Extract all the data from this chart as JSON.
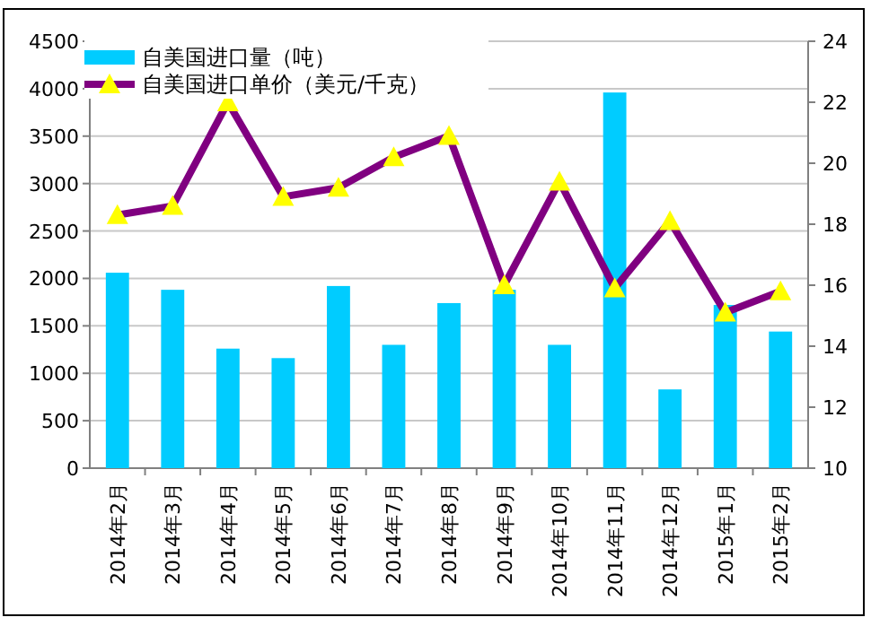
{
  "chart_data": {
    "type": "bar",
    "categories": [
      "2014年2月",
      "2014年3月",
      "2014年4月",
      "2014年5月",
      "2014年6月",
      "2014年7月",
      "2014年8月",
      "2014年9月",
      "2014年10月",
      "2014年11月",
      "2014年12月",
      "2015年1月",
      "2015年2月"
    ],
    "series": [
      {
        "name": "自美国进口量（吨）",
        "color": "#00ccff",
        "values": [
          2060,
          1880,
          1260,
          1160,
          1920,
          1300,
          1740,
          1880,
          1300,
          3960,
          830,
          1720,
          1440
        ]
      },
      {
        "name": "自美国进口单价（美元/千克）",
        "type": "line",
        "axis": "y2",
        "color": "#800080",
        "marker": "triangle",
        "values": [
          18.3,
          18.6,
          22.0,
          18.9,
          19.2,
          20.2,
          20.9,
          16.0,
          19.4,
          15.9,
          18.1,
          15.1,
          15.8
        ]
      }
    ],
    "ylim": [
      0,
      4500
    ],
    "yticks": [
      0,
      500,
      1000,
      1500,
      2000,
      2500,
      3000,
      3500,
      4000,
      4500
    ],
    "y2lim": [
      10,
      24
    ],
    "y2ticks": [
      10,
      12,
      14,
      16,
      18,
      20,
      22,
      24
    ],
    "grid": "y",
    "legend": "top left"
  }
}
